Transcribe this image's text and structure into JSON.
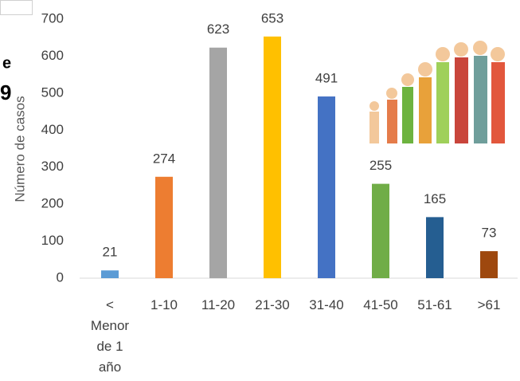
{
  "chart_data": {
    "type": "bar",
    "y_label": "Número de casos",
    "annotations": [
      "e",
      "9"
    ],
    "categories": [
      "< Menor de 1 año",
      "1-10",
      "11-20",
      "21-30",
      "31-40",
      "41-50",
      "51-61",
      ">61"
    ],
    "values": [
      21,
      274,
      623,
      653,
      491,
      255,
      165,
      73
    ],
    "colors": [
      "#5b9bd5",
      "#ed7d31",
      "#a5a5a5",
      "#ffc000",
      "#4472c4",
      "#70ad47",
      "#255e91",
      "#9e480e"
    ],
    "ylim": [
      0,
      700
    ],
    "yticks": [
      0,
      100,
      200,
      300,
      400,
      500,
      600,
      700
    ],
    "grid": false
  }
}
